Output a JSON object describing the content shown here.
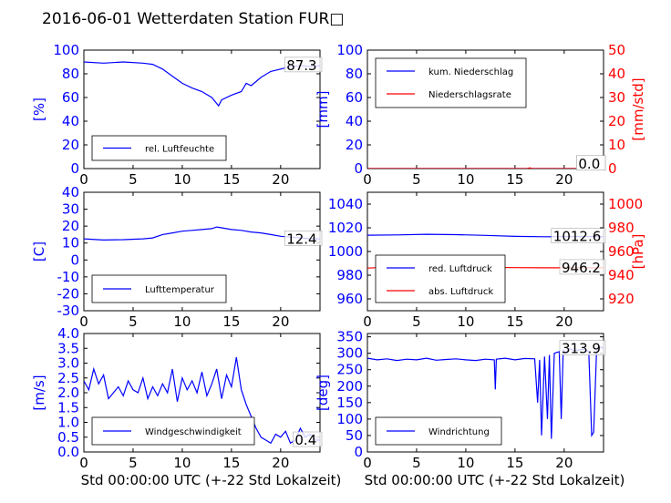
{
  "title": "2016-06-01 Wetterdaten Station FUR□",
  "colors": {
    "primary": "#0000ff",
    "secondary": "#ff0000",
    "text": "#000000"
  },
  "chart_data": [
    {
      "id": "humidity",
      "type": "line",
      "xlim": [
        0,
        24
      ],
      "xticks": [
        0,
        5,
        10,
        15,
        20
      ],
      "ylim": [
        0,
        100
      ],
      "yticks": [
        0,
        20,
        40,
        60,
        80,
        100
      ],
      "ylabel": "[%]",
      "xlabel": "",
      "legend": [
        "rel. Luftfeuchte"
      ],
      "last_value": "87.3",
      "series": [
        {
          "name": "rel. Luftfeuchte",
          "x": [
            0,
            2,
            4,
            6,
            7,
            8,
            9,
            10,
            11,
            12,
            13,
            13.7,
            14,
            15,
            16,
            16.5,
            17,
            18,
            19,
            20,
            21,
            22,
            23,
            24
          ],
          "y": [
            90,
            89,
            90,
            89,
            88,
            84,
            78,
            72,
            68,
            65,
            60,
            53,
            58,
            62,
            65,
            72,
            70,
            77,
            82,
            84,
            86,
            87,
            86,
            87
          ]
        }
      ]
    },
    {
      "id": "precip",
      "type": "line",
      "xlim": [
        0,
        24
      ],
      "xticks": [
        0,
        5,
        10,
        15,
        20
      ],
      "ylim": [
        0,
        100
      ],
      "yticks": [
        0,
        20,
        40,
        60,
        80,
        100
      ],
      "ylabel": "[mm]",
      "y2lim": [
        0,
        50
      ],
      "y2ticks": [
        0,
        10,
        20,
        30,
        40,
        50
      ],
      "y2label": "[mm/std]",
      "xlabel": "",
      "legend": [
        "kum. Niederschlag",
        "Niederschlagsrate"
      ],
      "last_value": "0.0",
      "last_value_2": "0.0",
      "series": [
        {
          "name": "kum. Niederschlag",
          "axis": "left",
          "x": [
            0,
            24
          ],
          "y": [
            0,
            0
          ]
        },
        {
          "name": "Niederschlagsrate",
          "axis": "right",
          "x": [
            0,
            16.3,
            16.5,
            16.7,
            24
          ],
          "y": [
            0,
            0,
            0.3,
            0,
            0
          ]
        }
      ]
    },
    {
      "id": "temperature",
      "type": "line",
      "xlim": [
        0,
        24
      ],
      "xticks": [
        0,
        5,
        10,
        15,
        20
      ],
      "ylim": [
        -30,
        40
      ],
      "yticks": [
        -30,
        -20,
        -10,
        0,
        10,
        20,
        30,
        40
      ],
      "ylabel": "[C]",
      "xlabel": "",
      "legend": [
        "Lufttemperatur"
      ],
      "last_value": "12.4",
      "series": [
        {
          "name": "Lufttemperatur",
          "x": [
            0,
            2,
            4,
            6,
            7,
            8,
            9,
            10,
            11,
            12,
            13,
            13.5,
            14,
            15,
            16,
            17,
            18,
            19,
            20,
            21,
            22,
            23,
            24
          ],
          "y": [
            12.5,
            11.8,
            12,
            12.5,
            13,
            15,
            16,
            17,
            17.5,
            18,
            18.5,
            19.5,
            19,
            18,
            17.5,
            16.5,
            16,
            15,
            14,
            13.5,
            13,
            12.6,
            12.4
          ]
        }
      ]
    },
    {
      "id": "pressure",
      "type": "line",
      "xlim": [
        0,
        24
      ],
      "xticks": [
        0,
        5,
        10,
        15,
        20
      ],
      "ylim": [
        950,
        1050
      ],
      "yticks": [
        960,
        980,
        1000,
        1020,
        1040
      ],
      "ylabel": "",
      "y2lim": [
        910,
        1010
      ],
      "y2ticks": [
        920,
        940,
        960,
        980,
        1000
      ],
      "y2label": "[hPa]",
      "xlabel": "",
      "legend": [
        "red. Luftdruck",
        "abs. Luftdruck"
      ],
      "last_value": "1012.6",
      "last_value_2": "946.2",
      "series": [
        {
          "name": "red. Luftdruck",
          "axis": "left",
          "x": [
            0,
            3,
            6,
            9,
            12,
            15,
            18,
            21,
            24
          ],
          "y": [
            1013.8,
            1014,
            1014.5,
            1014.2,
            1013.6,
            1012.8,
            1012.5,
            1012.6,
            1012.6
          ]
        },
        {
          "name": "abs. Luftdruck",
          "axis": "right",
          "x": [
            0,
            3,
            6,
            9,
            12,
            15,
            18,
            21,
            24
          ],
          "y": [
            946,
            947,
            947.3,
            947,
            946.6,
            946.4,
            946.2,
            946.2,
            946.2
          ]
        }
      ]
    },
    {
      "id": "windspeed",
      "type": "line",
      "xlim": [
        0,
        24
      ],
      "xticks": [
        0,
        5,
        10,
        15,
        20
      ],
      "ylim": [
        0,
        4
      ],
      "yticks": [
        0.0,
        0.5,
        1.0,
        1.5,
        2.0,
        2.5,
        3.0,
        3.5,
        4.0
      ],
      "ylabel": "[m/s]",
      "xlabel": "Std 00:00:00 UTC (+-22 Std Lokalzeit)",
      "legend": [
        "Windgeschwindigkeit"
      ],
      "last_value": "0.4",
      "series": [
        {
          "name": "Windgeschwindigkeit",
          "x": [
            0,
            0.5,
            1,
            1.5,
            2,
            2.5,
            3,
            3.5,
            4,
            4.5,
            5,
            5.5,
            6,
            6.5,
            7,
            7.5,
            8,
            8.5,
            9,
            9.5,
            10,
            10.5,
            11,
            11.5,
            12,
            12.5,
            13,
            13.5,
            14,
            14.5,
            15,
            15.5,
            16,
            16.5,
            17,
            17.5,
            18,
            18.5,
            19,
            19.5,
            20,
            20.5,
            21,
            21.5,
            22,
            22.5,
            23,
            23.5,
            24
          ],
          "y": [
            2.4,
            2.1,
            2.8,
            2.3,
            2.6,
            1.8,
            2.0,
            2.2,
            1.9,
            2.4,
            2.1,
            2.0,
            2.5,
            1.8,
            2.2,
            1.9,
            2.3,
            2.0,
            2.8,
            1.7,
            2.5,
            2.1,
            2.4,
            2.0,
            2.7,
            1.9,
            2.3,
            2.8,
            1.8,
            2.6,
            2.2,
            3.2,
            2.1,
            1.6,
            1.2,
            0.8,
            0.5,
            0.4,
            0.3,
            0.6,
            0.5,
            0.7,
            0.3,
            0.4,
            0.8,
            0.5,
            0.6,
            0.4,
            0.4
          ]
        }
      ]
    },
    {
      "id": "winddir",
      "type": "line",
      "xlim": [
        0,
        24
      ],
      "xticks": [
        0,
        5,
        10,
        15,
        20
      ],
      "ylim": [
        0,
        360
      ],
      "yticks": [
        0,
        50,
        100,
        150,
        200,
        250,
        300,
        350
      ],
      "ylabel": "[deg]",
      "xlabel": "Std 00:00:00 UTC (+-22 Std Lokalzeit)",
      "legend": [
        "Windrichtung"
      ],
      "last_value": "313.9",
      "series": [
        {
          "name": "Windrichtung",
          "x": [
            0,
            1,
            2,
            3,
            4,
            5,
            6,
            7,
            8,
            9,
            10,
            11,
            12,
            12.9,
            13,
            13.1,
            14,
            15,
            16,
            17,
            17.3,
            17.5,
            17.7,
            18,
            18.3,
            18.5,
            18.7,
            19,
            19.5,
            19.7,
            19.9,
            20.2,
            20.5,
            21,
            22,
            22.5,
            22.8,
            23,
            23.3,
            23.6,
            24
          ],
          "y": [
            285,
            280,
            283,
            278,
            282,
            280,
            285,
            279,
            281,
            283,
            280,
            278,
            282,
            280,
            190,
            282,
            285,
            280,
            284,
            283,
            150,
            280,
            50,
            290,
            100,
            295,
            40,
            300,
            305,
            100,
            310,
            300,
            315,
            308,
            312,
            305,
            50,
            60,
            310,
            320,
            314
          ]
        }
      ]
    }
  ]
}
